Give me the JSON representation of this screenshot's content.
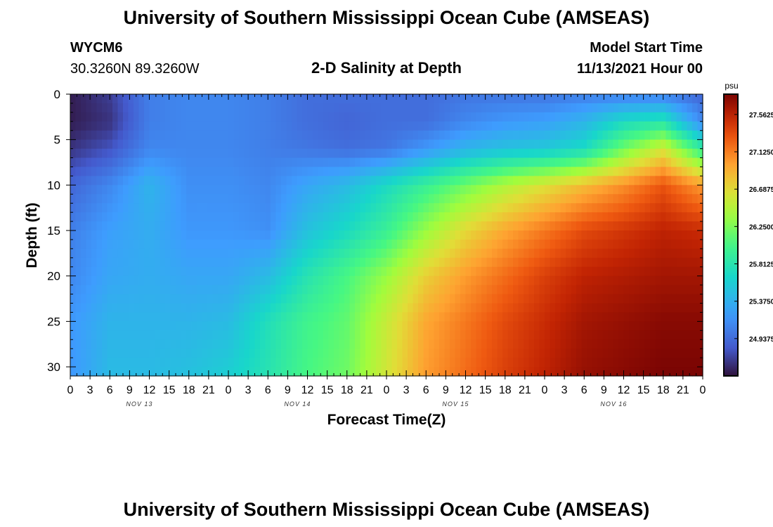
{
  "header": {
    "title": "University of Southern Mississippi Ocean Cube (AMSEAS)",
    "station_id": "WYCM6",
    "coordinates": "30.3260N  89.3260W",
    "plot_title": "2-D Salinity at Depth",
    "model_start_label": "Model Start Time",
    "model_start_value": "11/13/2021 Hour 00"
  },
  "footer": {
    "title": "University of Southern Mississippi Ocean Cube (AMSEAS)"
  },
  "chart_data": {
    "type": "heatmap",
    "title": "2-D Salinity at Depth",
    "xlabel": "Forecast Time(Z)",
    "ylabel": "Depth (ft)",
    "x_tick_labels": [
      "0",
      "3",
      "6",
      "9",
      "12",
      "15",
      "18",
      "21",
      "0",
      "3",
      "6",
      "9",
      "12",
      "15",
      "18",
      "21",
      "0",
      "3",
      "6",
      "9",
      "12",
      "15",
      "18",
      "21",
      "0",
      "3",
      "6",
      "9",
      "12",
      "15",
      "18",
      "21",
      "0"
    ],
    "day_labels": [
      "NOV 13",
      "NOV 14",
      "NOV 15",
      "NOV 16"
    ],
    "xlim_hours": [
      0,
      96
    ],
    "ylim": [
      0,
      31
    ],
    "y_ticks": [
      0,
      5,
      10,
      15,
      20,
      25,
      30
    ],
    "y_inverted": true,
    "colorbar": {
      "unit": "psu",
      "ticks": [
        "27.5625",
        "27.1250",
        "26.6875",
        "26.2500",
        "25.8125",
        "25.3750",
        "24.9375"
      ],
      "range": [
        24.5,
        27.8
      ]
    },
    "grid": false,
    "notes": "Salinity field: low (~24.5 psu) near surface at start, increasing to ~27.8 psu at depth late in the forecast period.",
    "salinity_samples_psu": {
      "depths_ft": [
        0,
        3,
        6,
        10,
        15,
        20,
        25,
        31
      ],
      "hours": [
        0,
        6,
        12,
        18,
        24,
        30,
        36,
        42,
        48,
        54,
        60,
        66,
        72,
        78,
        84,
        90,
        96
      ],
      "grid": [
        [
          24.55,
          24.7,
          25.05,
          25.1,
          25.1,
          25.05,
          24.95,
          24.95,
          24.95,
          24.95,
          25.0,
          25.0,
          25.0,
          25.05,
          25.05,
          25.05,
          24.9
        ],
        [
          24.55,
          24.65,
          25.05,
          25.1,
          25.1,
          25.05,
          24.95,
          24.9,
          24.95,
          24.95,
          25.1,
          25.2,
          25.25,
          25.4,
          25.7,
          25.8,
          25.1
        ],
        [
          24.65,
          24.8,
          25.1,
          25.1,
          25.1,
          25.05,
          25.0,
          24.95,
          25.0,
          25.2,
          25.4,
          25.5,
          25.55,
          25.7,
          26.2,
          26.6,
          25.9
        ],
        [
          24.9,
          25.1,
          25.4,
          25.15,
          25.15,
          25.1,
          25.3,
          25.45,
          25.7,
          25.95,
          26.2,
          26.45,
          26.65,
          26.85,
          27.05,
          27.3,
          27.0
        ],
        [
          25.05,
          25.25,
          25.35,
          25.2,
          25.2,
          25.15,
          25.5,
          25.7,
          25.95,
          26.35,
          26.7,
          26.95,
          27.15,
          27.35,
          27.45,
          27.55,
          27.5
        ],
        [
          25.1,
          25.3,
          25.35,
          25.3,
          25.3,
          25.45,
          25.8,
          26.05,
          26.35,
          26.75,
          27.0,
          27.2,
          27.4,
          27.55,
          27.6,
          27.65,
          27.65
        ],
        [
          25.2,
          25.4,
          25.4,
          25.4,
          25.45,
          25.75,
          26.0,
          26.15,
          26.55,
          26.95,
          27.15,
          27.35,
          27.5,
          27.65,
          27.7,
          27.75,
          27.75
        ],
        [
          25.2,
          25.45,
          25.45,
          25.5,
          25.6,
          25.8,
          26.05,
          26.2,
          26.6,
          27.0,
          27.2,
          27.4,
          27.55,
          27.7,
          27.75,
          27.8,
          27.8
        ]
      ]
    }
  }
}
